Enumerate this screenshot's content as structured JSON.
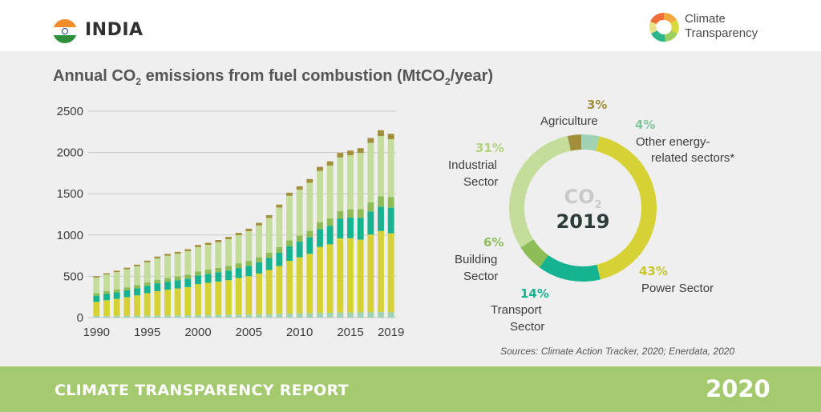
{
  "header": {
    "country": "INDIA",
    "brand_line1": "Climate",
    "brand_line2": "Transparency"
  },
  "title": {
    "pre": "Annual CO",
    "sub1": "2",
    "mid": " emissions from fuel combustion (MtCO",
    "sub2": "2",
    "post": "/year)"
  },
  "colors": {
    "other_energy": "#9fd3b4",
    "power": "#d6d235",
    "transport": "#15b38f",
    "building": "#8ebd58",
    "industrial": "#c4dd9b",
    "agriculture": "#a18f3b",
    "background": "#efefef",
    "footer": "#a4c96e"
  },
  "chart_data": [
    {
      "type": "bar",
      "stacked": true,
      "title": "Annual CO2 emissions from fuel combustion (MtCO2/year)",
      "ylim": [
        0,
        2500
      ],
      "yticks": [
        "0",
        "500",
        "1000",
        "1500",
        "2000",
        "2500"
      ],
      "xticks": [
        "1990",
        "1995",
        "2000",
        "2005",
        "2010",
        "2015",
        "2019"
      ],
      "grid": true,
      "categories": [
        1990,
        1991,
        1992,
        1993,
        1994,
        1995,
        1996,
        1997,
        1998,
        1999,
        2000,
        2001,
        2002,
        2003,
        2004,
        2005,
        2006,
        2007,
        2008,
        2009,
        2010,
        2011,
        2012,
        2013,
        2014,
        2015,
        2016,
        2017,
        2018,
        2019
      ],
      "series": [
        {
          "key": "other_energy",
          "values": [
            20,
            21,
            22,
            23,
            24,
            25,
            26,
            27,
            28,
            29,
            30,
            31,
            32,
            33,
            35,
            37,
            39,
            42,
            45,
            48,
            50,
            53,
            56,
            58,
            60,
            62,
            64,
            66,
            69,
            66
          ]
        },
        {
          "key": "power",
          "values": [
            170,
            190,
            205,
            225,
            245,
            270,
            295,
            310,
            325,
            340,
            375,
            390,
            405,
            420,
            445,
            465,
            495,
            535,
            580,
            640,
            680,
            720,
            800,
            830,
            900,
            900,
            880,
            940,
            980,
            955
          ]
        },
        {
          "key": "transport",
          "values": [
            75,
            78,
            80,
            82,
            85,
            90,
            95,
            98,
            100,
            103,
            105,
            108,
            112,
            116,
            120,
            125,
            135,
            145,
            160,
            175,
            190,
            200,
            215,
            225,
            240,
            250,
            265,
            280,
            295,
            310
          ]
        },
        {
          "key": "building",
          "values": [
            30,
            32,
            34,
            36,
            38,
            40,
            42,
            44,
            46,
            48,
            50,
            52,
            54,
            56,
            58,
            60,
            62,
            65,
            68,
            72,
            75,
            80,
            85,
            88,
            90,
            100,
            105,
            110,
            125,
            130
          ]
        },
        {
          "key": "industrial",
          "values": [
            190,
            200,
            210,
            220,
            230,
            245,
            260,
            270,
            275,
            285,
            295,
            300,
            310,
            325,
            340,
            360,
            385,
            420,
            480,
            540,
            555,
            580,
            620,
            640,
            650,
            655,
            680,
            720,
            730,
            700
          ]
        },
        {
          "key": "agriculture",
          "values": [
            15,
            16,
            17,
            18,
            19,
            20,
            21,
            22,
            22,
            23,
            24,
            25,
            26,
            27,
            28,
            30,
            32,
            34,
            36,
            38,
            40,
            45,
            50,
            52,
            55,
            56,
            58,
            60,
            70,
            65
          ]
        }
      ]
    },
    {
      "type": "pie",
      "donut": true,
      "center_label_pre": "CO",
      "center_label_sub": "2",
      "center_year": "2019",
      "slices": [
        {
          "key": "agriculture",
          "label": "Agriculture",
          "pct_label": "3%",
          "value": 3
        },
        {
          "key": "other_energy",
          "label_line1": "Other energy-",
          "label_line2": "related sectors*",
          "pct_label": "4%",
          "value": 4
        },
        {
          "key": "power",
          "label": "Power Sector",
          "pct_label": "43%",
          "value": 43
        },
        {
          "key": "transport",
          "label_line1": "Transport",
          "label_line2": "Sector",
          "pct_label": "14%",
          "value": 14
        },
        {
          "key": "building",
          "label_line1": "Building",
          "label_line2": "Sector",
          "pct_label": "6%",
          "value": 6
        },
        {
          "key": "industrial",
          "label_line1": "Industrial",
          "label_line2": "Sector",
          "pct_label": "31%",
          "value": 31
        }
      ]
    }
  ],
  "source": "Sources: Climate Action Tracker, 2020; Enerdata, 2020",
  "footer": {
    "report": "CLIMATE TRANSPARENCY REPORT",
    "year": "2020"
  }
}
